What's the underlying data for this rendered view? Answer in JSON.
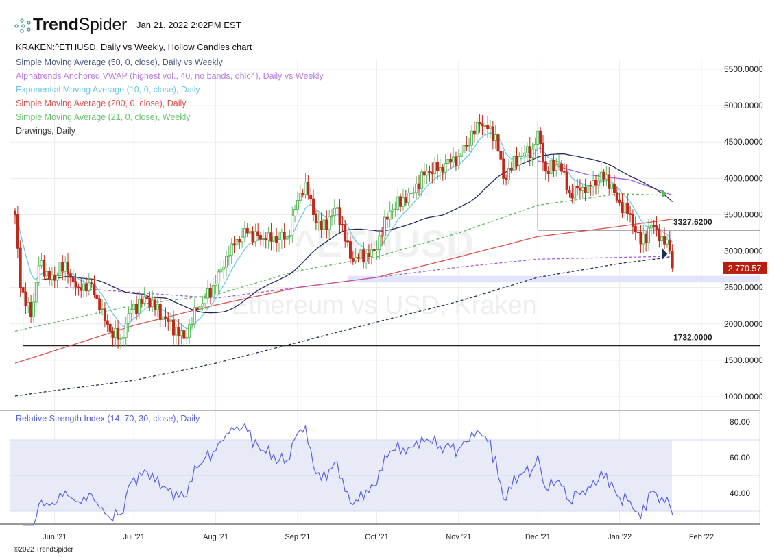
{
  "header": {
    "brand_bold": "Trend",
    "brand_light": "Spider",
    "timestamp": "Jan 21, 2022 2:02PM EST"
  },
  "chart_title": "KRAKEN:^ETHUSD, Daily vs Weekly, Hollow Candles chart",
  "legend": [
    {
      "text": "Simple Moving Average (50, 0, close), Daily vs Weekly",
      "color": "#4a5a82"
    },
    {
      "text": "Alphatrends Anchored VWAP (highest vol., 40, no bands, ohlc4), Daily vs Weekly",
      "color": "#b77ee0"
    },
    {
      "text": "Exponential Moving Average (10, 0, close), Daily",
      "color": "#6cc6e6"
    },
    {
      "text": "Simple Moving Average (200, 0, close), Daily",
      "color": "#d9534f"
    },
    {
      "text": "Simple Moving Average (21, 0, close), Weekly",
      "color": "#6cc070"
    },
    {
      "text": "Drawings, Daily",
      "color": "#444444"
    }
  ],
  "watermark": {
    "symbol": "^ETHUSD",
    "name": "Ethereum vs USD, Kraken"
  },
  "footer": "©2022 TrendSpider",
  "rsi_label": "Relative Strength Index (14, 70, 30, close), Daily",
  "chart_data": {
    "type": "candlestick",
    "start_date": "2021-05-17",
    "ylim": [
      850,
      5800
    ],
    "y_ticks": [
      "5500.0000",
      "5000.0000",
      "4500.0000",
      "4000.0000",
      "3500.0000",
      "3000.0000",
      "2500.0000",
      "2000.0000",
      "1500.0000",
      "1000.0000"
    ],
    "y_tick_values": [
      5500,
      5000,
      4500,
      4000,
      3500,
      3000,
      2500,
      2000,
      1500,
      1000
    ],
    "x_ticks": [
      [
        "Jun '21",
        "2021-06-01"
      ],
      [
        "Jul '21",
        "2021-07-01"
      ],
      [
        "Aug '21",
        "2021-08-01"
      ],
      [
        "Sep '21",
        "2021-09-01"
      ],
      [
        "Oct '21",
        "2021-10-01"
      ],
      [
        "Nov '21",
        "2021-11-01"
      ],
      [
        "Dec '21",
        "2021-12-01"
      ],
      [
        "Jan '22",
        "2022-01-01"
      ],
      [
        "Feb '22",
        "2022-02-01"
      ]
    ],
    "close_keypoints": [
      [
        "2021-05-17",
        3500
      ],
      [
        "2021-05-19",
        2500
      ],
      [
        "2021-05-23",
        2100
      ],
      [
        "2021-05-26",
        2800
      ],
      [
        "2021-06-01",
        2600
      ],
      [
        "2021-06-03",
        2850
      ],
      [
        "2021-06-10",
        2500
      ],
      [
        "2021-06-15",
        2550
      ],
      [
        "2021-06-18",
        2200
      ],
      [
        "2021-06-22",
        1900
      ],
      [
        "2021-06-26",
        1800
      ],
      [
        "2021-06-30",
        2200
      ],
      [
        "2021-07-06",
        2350
      ],
      [
        "2021-07-12",
        2100
      ],
      [
        "2021-07-20",
        1800
      ],
      [
        "2021-07-25",
        2200
      ],
      [
        "2021-08-01",
        2550
      ],
      [
        "2021-08-07",
        3100
      ],
      [
        "2021-08-13",
        3250
      ],
      [
        "2021-08-20",
        3150
      ],
      [
        "2021-08-28",
        3200
      ],
      [
        "2021-09-02",
        3800
      ],
      [
        "2021-09-04",
        3950
      ],
      [
        "2021-09-07",
        3500
      ],
      [
        "2021-09-10",
        3300
      ],
      [
        "2021-09-16",
        3600
      ],
      [
        "2021-09-21",
        2900
      ],
      [
        "2021-09-24",
        2900
      ],
      [
        "2021-09-30",
        3000
      ],
      [
        "2021-10-06",
        3550
      ],
      [
        "2021-10-14",
        3800
      ],
      [
        "2021-10-20",
        4100
      ],
      [
        "2021-10-25",
        4150
      ],
      [
        "2021-11-01",
        4300
      ],
      [
        "2021-11-09",
        4750
      ],
      [
        "2021-11-15",
        4600
      ],
      [
        "2021-11-18",
        4000
      ],
      [
        "2021-11-24",
        4300
      ],
      [
        "2021-11-29",
        4400
      ],
      [
        "2021-12-01",
        4650
      ],
      [
        "2021-12-04",
        4100
      ],
      [
        "2021-12-09",
        4200
      ],
      [
        "2021-12-13",
        3800
      ],
      [
        "2021-12-20",
        3900
      ],
      [
        "2021-12-27",
        4050
      ],
      [
        "2021-12-31",
        3700
      ],
      [
        "2022-01-05",
        3500
      ],
      [
        "2022-01-09",
        3100
      ],
      [
        "2022-01-13",
        3350
      ],
      [
        "2022-01-17",
        3200
      ],
      [
        "2022-01-20",
        3000
      ],
      [
        "2022-01-21",
        2770.57
      ]
    ],
    "last_price": "2,770.57",
    "overlays": [
      {
        "name": "SMA 200 Daily",
        "color": "#d9534f",
        "dash": false,
        "points": [
          [
            "2021-05-17",
            1460
          ],
          [
            "2021-07-01",
            1980
          ],
          [
            "2021-08-01",
            2260
          ],
          [
            "2021-09-01",
            2500
          ],
          [
            "2021-10-01",
            2640
          ],
          [
            "2021-11-01",
            2920
          ],
          [
            "2021-12-01",
            3200
          ],
          [
            "2022-01-01",
            3340
          ],
          [
            "2022-01-21",
            3440
          ]
        ]
      },
      {
        "name": "SMA 21 Weekly",
        "color": "#5cb85c",
        "dash": true,
        "points": [
          [
            "2021-05-17",
            1900
          ],
          [
            "2021-07-01",
            2260
          ],
          [
            "2021-08-01",
            2400
          ],
          [
            "2021-09-01",
            2730
          ],
          [
            "2021-10-01",
            2920
          ],
          [
            "2021-11-01",
            3250
          ],
          [
            "2021-12-01",
            3630
          ],
          [
            "2022-01-01",
            3790
          ],
          [
            "2022-01-17",
            3770
          ]
        ]
      },
      {
        "name": "SMA 50 Weekly",
        "color": "#1f2d5a",
        "dash": true,
        "points": [
          [
            "2021-05-17",
            1010
          ],
          [
            "2021-06-01",
            1085
          ],
          [
            "2021-07-01",
            1225
          ],
          [
            "2021-08-01",
            1460
          ],
          [
            "2021-09-01",
            1745
          ],
          [
            "2021-10-01",
            2025
          ],
          [
            "2021-11-01",
            2310
          ],
          [
            "2021-12-01",
            2640
          ],
          [
            "2022-01-01",
            2830
          ],
          [
            "2022-01-21",
            2920
          ]
        ]
      },
      {
        "name": "Anchored VWAP Weekly",
        "color": "#a55be0",
        "dash": true,
        "points": [
          [
            "2021-06-05",
            2500
          ],
          [
            "2021-08-01",
            2355
          ],
          [
            "2021-09-01",
            2500
          ],
          [
            "2021-10-01",
            2640
          ],
          [
            "2021-11-01",
            2780
          ],
          [
            "2021-12-01",
            2890
          ],
          [
            "2022-01-21",
            2930
          ]
        ]
      },
      {
        "name": "Anchored VWAP Daily",
        "color": "#a55be0",
        "dash": false,
        "points": [
          [
            "2021-12-01",
            4240
          ],
          [
            "2021-12-20",
            4050
          ],
          [
            "2022-01-05",
            3980
          ],
          [
            "2022-01-21",
            3770
          ]
        ]
      }
    ],
    "levels": [
      {
        "label": "3327.6200",
        "value": 3290,
        "from": "2021-12-01"
      },
      {
        "label": "1732.0000",
        "value": 1700,
        "from": "2021-05-20"
      }
    ],
    "zone": {
      "from": "2021-09-20",
      "low": 2570,
      "high": 2660
    },
    "rsi": {
      "period": 14,
      "upper": 70,
      "lower": 30,
      "ylim": [
        20,
        87
      ],
      "ticks": [
        "80.00",
        "60.00",
        "40.00"
      ],
      "tick_values": [
        80,
        60,
        40
      ]
    },
    "colors": {
      "up": "#5cb85c",
      "down": "#c0281b",
      "ema10": "#6cc6e6",
      "sma50": "#1f2d5a",
      "rsi": "#5560e8",
      "rsi_band": "#e8eaf8"
    }
  }
}
